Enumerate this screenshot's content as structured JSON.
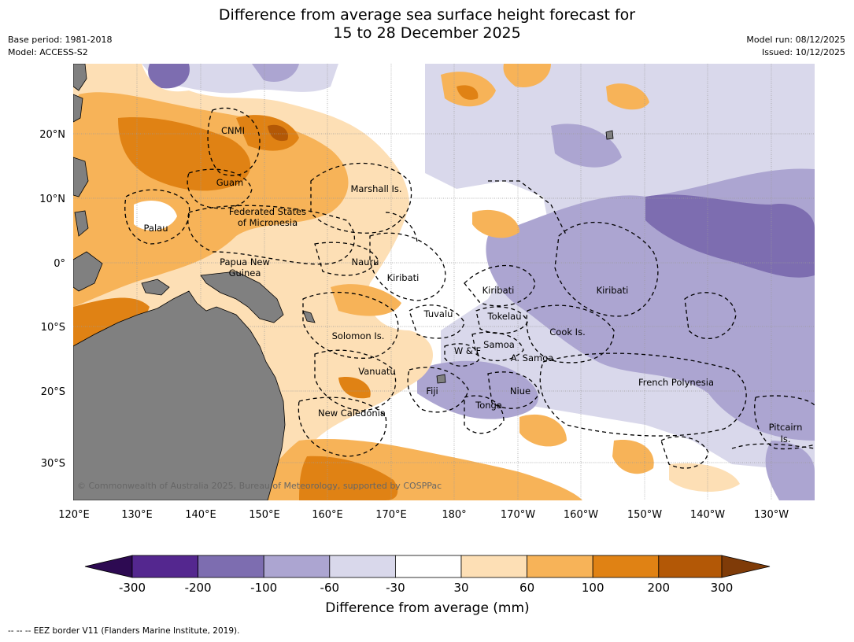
{
  "title": {
    "line1": "Difference from average sea surface height forecast for",
    "line2": "15 to 28 December 2025"
  },
  "meta": {
    "base_period": "Base period: 1981-2018",
    "model": "Model: ACCESS-S2",
    "model_run": "Model run: 08/12/2025",
    "issued": "Issued: 10/12/2025"
  },
  "axes": {
    "lon_ticks": [
      "120°E",
      "130°E",
      "140°E",
      "150°E",
      "160°E",
      "170°E",
      "180°",
      "170°W",
      "160°W",
      "150°W",
      "140°W",
      "130°W"
    ],
    "lat_ticks": [
      "20°N",
      "10°N",
      "0°",
      "10°S",
      "20°S",
      "30°S"
    ]
  },
  "places": [
    "CNMI",
    "Guam",
    "Marshall Is.",
    "Federated States",
    "of Micronesia",
    "Palau",
    "Papua New",
    "Guinea",
    "Nauru",
    "Kiribati",
    "Kiribati",
    "Kiribati",
    "Tuvalu",
    "Tokelau",
    "Cook Is.",
    "Solomon Is.",
    "Samoa",
    "W & F",
    "A. Samoa",
    "Vanuatu",
    "Fiji",
    "Niue",
    "French Polynesia",
    "Tonga",
    "New Caledonia",
    "Pitcairn",
    "Is."
  ],
  "copyright": "© Commonwealth of Australia 2025, Bureau of Meteorology, supported by COSPPac",
  "colorbar": {
    "label": "Difference from average (mm)",
    "ticks": [
      "-300",
      "-200",
      "-100",
      "-60",
      "-30",
      "30",
      "60",
      "100",
      "200",
      "300"
    ],
    "colors": [
      "#2d0a52",
      "#54278f",
      "#7d6db0",
      "#aca5d1",
      "#d9d8eb",
      "#ffffff",
      "#fddfb5",
      "#f7b358",
      "#e08214",
      "#b35806",
      "#7f3b08"
    ]
  },
  "legend_note": "--  --  -- EEZ border V11 (Flanders Marine Institute, 2019)."
}
